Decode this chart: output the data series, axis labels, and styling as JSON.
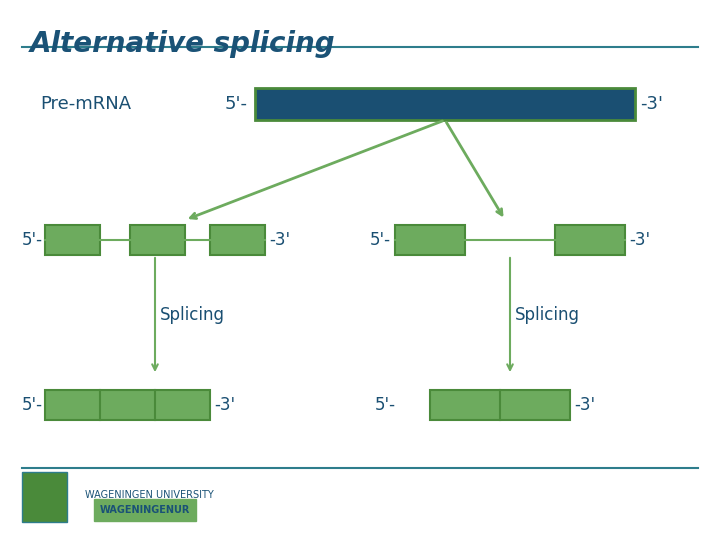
{
  "title": "Alternative splicing",
  "title_color": "#1a5276",
  "title_underline": true,
  "bg_color": "#ffffff",
  "green_light": "#6dab5e",
  "green_dark": "#1a5276",
  "pre_mrna_color": "#1a4f72",
  "line_color": "#6dab5e",
  "text_color": "#1a4f72",
  "arrow_color": "#6dab5e",
  "splicing_arrow_color": "#6dab5e",
  "pre_mrna_label": "Pre-mRNA",
  "five_prime": "5'’-",
  "three_prime": "-3’",
  "splicing_label": "Splicing",
  "wageningen_line_color": "#2e7d8c"
}
